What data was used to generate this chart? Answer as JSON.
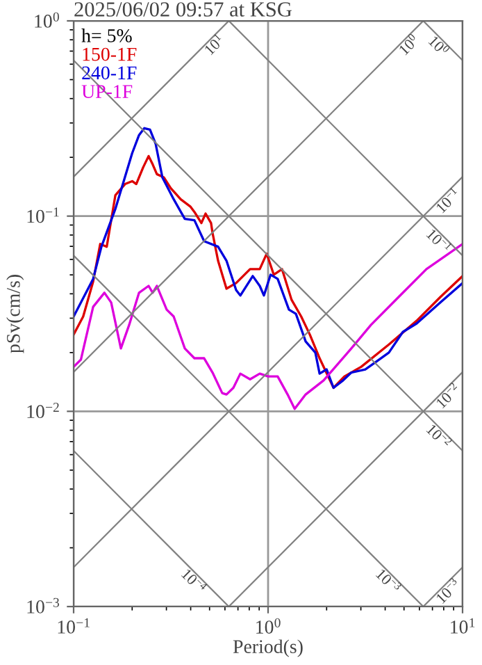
{
  "chart_data": {
    "type": "line",
    "title": "2025/06/02 09:57 at KSG",
    "xlabel": "Period(s)",
    "ylabel": "pSv(cm/s)",
    "legend_title": "h= 5%",
    "legend": "top left",
    "log": "xy",
    "grid": true,
    "xlim": [
      0.1,
      10
    ],
    "ylim": [
      0.001,
      1
    ],
    "xticks": [
      {
        "value": 0.1,
        "label": "10$^{−1}$"
      },
      {
        "value": 1,
        "label": "10$^{0}$"
      },
      {
        "value": 10,
        "label": "10$^{1}$"
      }
    ],
    "yticks": [
      {
        "value": 0.001,
        "label": "10$^{−3}$"
      },
      {
        "value": 0.01,
        "label": "10$^{−2}$"
      },
      {
        "value": 0.1,
        "label": "10$^{−1}$"
      },
      {
        "value": 1,
        "label": "10$^{0}$"
      }
    ],
    "annotations": [
      {
        "text": "10$^{1}$",
        "x": 0.628,
        "y": 1
      },
      {
        "text": "10$^{0}$",
        "x": 6.28,
        "y": 1
      },
      {
        "text": "10$^{−1}$",
        "x": 10,
        "y": 0.159
      },
      {
        "text": "10$^{−2}$",
        "x": 10,
        "y": 0.0159
      },
      {
        "text": "10$^{−3}$",
        "x": 10,
        "y": 0.00159
      },
      {
        "text": "10$^{0}$",
        "x": 10,
        "y": 0.628
      },
      {
        "text": "10$^{−1}$",
        "x": 10,
        "y": 0.0628
      },
      {
        "text": "10$^{−2}$",
        "x": 10,
        "y": 0.00628
      },
      {
        "text": "10$^{−3}$",
        "x": 5.5,
        "y": 0.00114
      },
      {
        "text": "10$^{−4}$",
        "x": 0.55,
        "y": 0.00114
      }
    ],
    "series": [
      {
        "name": "150-1F",
        "color": "#dd0000",
        "x": [
          0.1,
          0.112,
          0.126,
          0.137,
          0.148,
          0.164,
          0.184,
          0.2,
          0.21,
          0.228,
          0.243,
          0.255,
          0.268,
          0.291,
          0.316,
          0.355,
          0.398,
          0.418,
          0.454,
          0.477,
          0.509,
          0.518,
          0.553,
          0.611,
          0.685,
          0.808,
          0.906,
          0.984,
          1.07,
          1.18,
          1.32,
          1.48,
          1.64,
          1.84,
          2.17,
          2.47,
          3.01,
          4.18,
          5.81,
          7.69,
          10
        ],
        "values": [
          0.0247,
          0.0306,
          0.0462,
          0.072,
          0.0697,
          0.128,
          0.146,
          0.151,
          0.146,
          0.178,
          0.203,
          0.184,
          0.164,
          0.158,
          0.139,
          0.122,
          0.112,
          0.105,
          0.0921,
          0.103,
          0.0921,
          0.0821,
          0.0591,
          0.0425,
          0.0454,
          0.0535,
          0.0535,
          0.0642,
          0.0501,
          0.0535,
          0.0373,
          0.0306,
          0.0247,
          0.0187,
          0.0132,
          0.0151,
          0.0169,
          0.022,
          0.0291,
          0.0385,
          0.0493
        ]
      },
      {
        "name": "240-1F",
        "color": "#0000dd",
        "x": [
          0.1,
          0.126,
          0.139,
          0.164,
          0.2,
          0.217,
          0.231,
          0.247,
          0.264,
          0.286,
          0.327,
          0.373,
          0.418,
          0.469,
          0.553,
          0.611,
          0.685,
          0.72,
          0.834,
          0.906,
          0.952,
          1.03,
          1.12,
          1.28,
          1.39,
          1.56,
          1.75,
          1.84,
          2.0,
          2.17,
          2.43,
          2.68,
          3.16,
          3.55,
          4.18,
          4.93,
          5.81,
          7.69,
          10
        ],
        "values": [
          0.0306,
          0.0477,
          0.0697,
          0.109,
          0.21,
          0.26,
          0.282,
          0.277,
          0.235,
          0.158,
          0.122,
          0.0968,
          0.0952,
          0.0744,
          0.0697,
          0.0591,
          0.0418,
          0.0392,
          0.0493,
          0.0439,
          0.0392,
          0.0501,
          0.0477,
          0.0332,
          0.0316,
          0.0228,
          0.02,
          0.0156,
          0.0164,
          0.0132,
          0.0144,
          0.0158,
          0.0164,
          0.0178,
          0.02,
          0.0255,
          0.0282,
          0.0361,
          0.0454
        ]
      },
      {
        "name": "UP-1F",
        "color": "#dd00dd",
        "x": [
          0.1,
          0.109,
          0.126,
          0.144,
          0.156,
          0.175,
          0.193,
          0.217,
          0.243,
          0.255,
          0.268,
          0.301,
          0.327,
          0.373,
          0.418,
          0.469,
          0.518,
          0.581,
          0.611,
          0.663,
          0.72,
          0.808,
          0.906,
          1.0,
          1.12,
          1.26,
          1.37,
          1.56,
          1.93,
          2.68,
          3.38,
          4.69,
          6.52,
          10
        ],
        "values": [
          0.0169,
          0.0184,
          0.0343,
          0.0405,
          0.0361,
          0.021,
          0.0277,
          0.0405,
          0.0439,
          0.0405,
          0.0439,
          0.0332,
          0.0306,
          0.021,
          0.0187,
          0.0187,
          0.0158,
          0.0124,
          0.0122,
          0.0132,
          0.0156,
          0.0146,
          0.0156,
          0.0151,
          0.0151,
          0.0122,
          0.0103,
          0.0122,
          0.0144,
          0.021,
          0.0277,
          0.0385,
          0.0535,
          0.072
        ]
      },
      {
        "color": "#808080",
        "x": [
          0.1,
          0.628
        ],
        "values": [
          0.159,
          1
        ]
      },
      {
        "color": "#808080",
        "x": [
          0.1,
          6.28
        ],
        "values": [
          0.0159,
          1
        ]
      },
      {
        "color": "#808080",
        "x": [
          0.1,
          10
        ],
        "values": [
          0.00159,
          0.159
        ]
      },
      {
        "color": "#808080",
        "x": [
          0.628,
          10
        ],
        "values": [
          0.001,
          0.0159
        ]
      },
      {
        "color": "#808080",
        "x": [
          6.28,
          10
        ],
        "values": [
          0.001,
          0.00159
        ]
      },
      {
        "color": "#808080",
        "x": [
          6.28,
          10
        ],
        "values": [
          1,
          0.628
        ]
      },
      {
        "color": "#808080",
        "x": [
          0.628,
          10
        ],
        "values": [
          1,
          0.0628
        ]
      },
      {
        "color": "#808080",
        "x": [
          0.1,
          10
        ],
        "values": [
          0.628,
          0.00628
        ]
      },
      {
        "color": "#808080",
        "x": [
          0.1,
          6.28
        ],
        "values": [
          0.0628,
          0.001
        ]
      },
      {
        "color": "#808080",
        "x": [
          0.1,
          0.628
        ],
        "values": [
          0.00628,
          0.001
        ]
      }
    ]
  }
}
